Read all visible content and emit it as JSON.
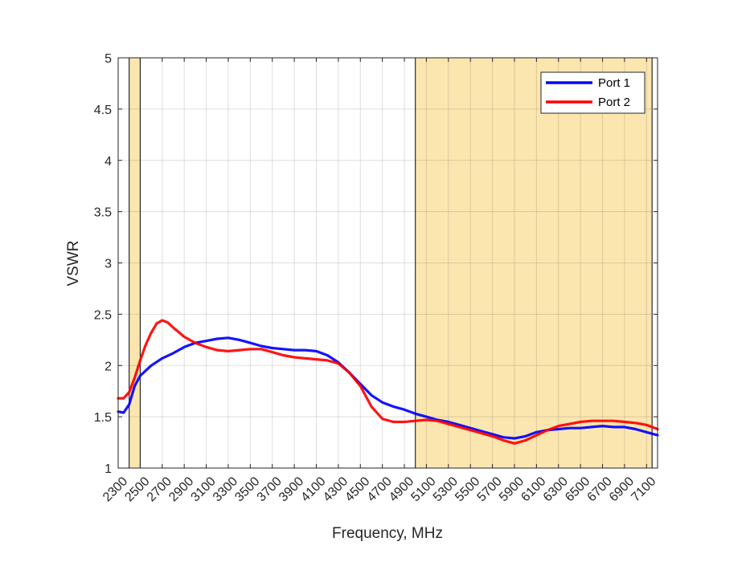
{
  "chart_data": {
    "type": "line",
    "xlabel": "Frequency, MHz",
    "ylabel": "VSWR",
    "xlim": [
      2300,
      7200
    ],
    "ylim": [
      1,
      5
    ],
    "x_ticks": [
      2300,
      2500,
      2700,
      2900,
      3100,
      3300,
      3500,
      3700,
      3900,
      4100,
      4300,
      4500,
      4700,
      4900,
      5100,
      5300,
      5500,
      5700,
      5900,
      6100,
      6300,
      6500,
      6700,
      6900,
      7100
    ],
    "x_tick_labels": [
      "2300",
      "2500",
      "2700",
      "2900",
      "3100",
      "3300",
      "3500",
      "3700",
      "3900",
      "4100",
      "4300",
      "4500",
      "4700",
      "4900",
      "5100",
      "5300",
      "5500",
      "5700",
      "5900",
      "6100",
      "6300",
      "6500",
      "6700",
      "6900",
      "7100"
    ],
    "y_ticks": [
      1,
      1.5,
      2,
      2.5,
      3,
      3.5,
      4,
      4.5,
      5
    ],
    "y_tick_labels": [
      "1",
      "1.5",
      "2",
      "2.5",
      "3",
      "3.5",
      "4",
      "4.5",
      "5"
    ],
    "grid": true,
    "legend_position": "top-right",
    "shaded_bands": [
      {
        "x_start": 2400,
        "x_end": 2500
      },
      {
        "x_start": 5000,
        "x_end": 7150
      }
    ],
    "band_color": "#f6c342",
    "series": [
      {
        "name": "Port 1",
        "color": "#0000ff",
        "x": [
          2300,
          2350,
          2400,
          2450,
          2500,
          2600,
          2700,
          2800,
          2900,
          3000,
          3100,
          3200,
          3300,
          3400,
          3500,
          3600,
          3700,
          3800,
          3900,
          4000,
          4100,
          4200,
          4300,
          4400,
          4500,
          4600,
          4700,
          4800,
          4900,
          5000,
          5100,
          5200,
          5300,
          5400,
          5500,
          5600,
          5700,
          5800,
          5900,
          6000,
          6100,
          6200,
          6300,
          6400,
          6500,
          6600,
          6700,
          6800,
          6900,
          7000,
          7100,
          7200
        ],
        "y": [
          1.55,
          1.54,
          1.62,
          1.8,
          1.9,
          2.0,
          2.07,
          2.12,
          2.18,
          2.22,
          2.24,
          2.26,
          2.27,
          2.25,
          2.22,
          2.19,
          2.17,
          2.16,
          2.15,
          2.15,
          2.14,
          2.1,
          2.03,
          1.93,
          1.82,
          1.71,
          1.64,
          1.6,
          1.57,
          1.53,
          1.5,
          1.47,
          1.45,
          1.42,
          1.39,
          1.36,
          1.33,
          1.3,
          1.29,
          1.31,
          1.35,
          1.37,
          1.38,
          1.39,
          1.39,
          1.4,
          1.41,
          1.4,
          1.4,
          1.38,
          1.35,
          1.32
        ]
      },
      {
        "name": "Port 2",
        "color": "#ff0000",
        "x": [
          2300,
          2350,
          2400,
          2450,
          2500,
          2550,
          2600,
          2650,
          2700,
          2750,
          2800,
          2900,
          3000,
          3100,
          3200,
          3300,
          3400,
          3500,
          3600,
          3700,
          3800,
          3900,
          4000,
          4100,
          4200,
          4300,
          4400,
          4500,
          4600,
          4700,
          4800,
          4900,
          5000,
          5100,
          5200,
          5300,
          5400,
          5500,
          5600,
          5700,
          5800,
          5900,
          6000,
          6100,
          6200,
          6300,
          6400,
          6500,
          6600,
          6700,
          6800,
          6900,
          7000,
          7100,
          7200
        ],
        "y": [
          1.68,
          1.68,
          1.74,
          1.88,
          2.05,
          2.2,
          2.32,
          2.41,
          2.44,
          2.42,
          2.37,
          2.28,
          2.22,
          2.18,
          2.15,
          2.14,
          2.15,
          2.16,
          2.16,
          2.13,
          2.1,
          2.08,
          2.07,
          2.06,
          2.05,
          2.02,
          1.93,
          1.8,
          1.6,
          1.48,
          1.45,
          1.45,
          1.46,
          1.47,
          1.46,
          1.43,
          1.4,
          1.37,
          1.34,
          1.31,
          1.27,
          1.24,
          1.27,
          1.32,
          1.37,
          1.41,
          1.43,
          1.45,
          1.46,
          1.46,
          1.46,
          1.45,
          1.44,
          1.42,
          1.38
        ]
      }
    ]
  }
}
